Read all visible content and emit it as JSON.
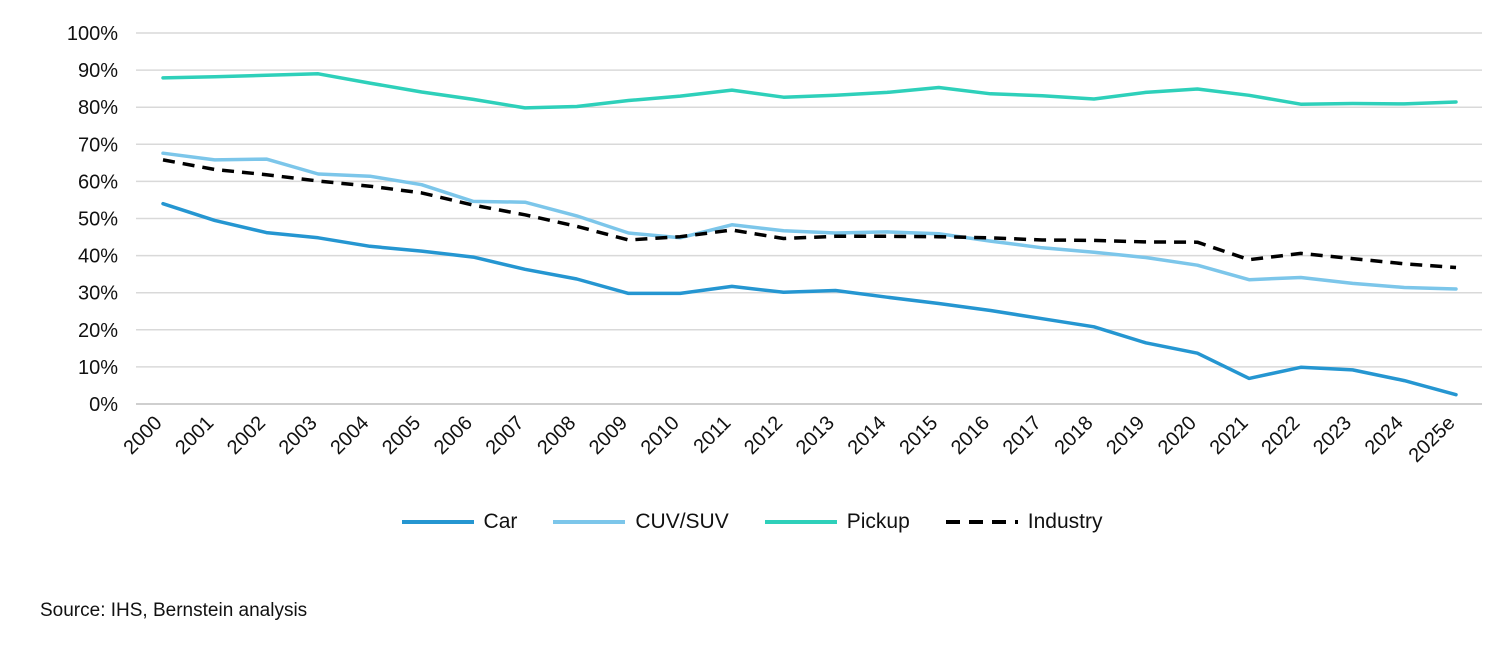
{
  "chart_data": {
    "type": "line",
    "title": "",
    "xlabel": "",
    "ylabel": "",
    "categories": [
      "2000",
      "2001",
      "2002",
      "2003",
      "2004",
      "2005",
      "2006",
      "2007",
      "2008",
      "2009",
      "2010",
      "2011",
      "2012",
      "2013",
      "2014",
      "2015",
      "2016",
      "2017",
      "2018",
      "2019",
      "2020",
      "2021",
      "2022",
      "2023",
      "2024",
      "2025e"
    ],
    "ylim": [
      0,
      100
    ],
    "yticks": [
      "0%",
      "10%",
      "20%",
      "30%",
      "40%",
      "50%",
      "60%",
      "70%",
      "80%",
      "90%",
      "100%"
    ],
    "grid": true,
    "legend_position": "bottom",
    "series": [
      {
        "name": "Car",
        "color": "#2596d1",
        "dash": "solid",
        "values": [
          54,
          49.5,
          46.2,
          44.8,
          42.5,
          41.2,
          39.6,
          36.3,
          33.7,
          29.8,
          29.8,
          31.7,
          30.1,
          30.6,
          28.8,
          27.1,
          25.2,
          23,
          20.8,
          16.5,
          13.7,
          6.9,
          9.9,
          9.2,
          6.3,
          2.5
        ]
      },
      {
        "name": "CUV/SUV",
        "color": "#7cc6ea",
        "dash": "solid",
        "values": [
          67.6,
          65.8,
          66,
          62,
          61.4,
          59.1,
          54.6,
          54.4,
          50.7,
          46.1,
          44.8,
          48.3,
          46.7,
          46.1,
          46.4,
          45.9,
          43.9,
          42.1,
          40.9,
          39.5,
          37.4,
          33.5,
          34.1,
          32.5,
          31.4,
          31
        ]
      },
      {
        "name": "Pickup",
        "color": "#2ed0ba",
        "dash": "solid",
        "values": [
          87.9,
          88.2,
          88.6,
          89,
          86.5,
          84.1,
          82.1,
          79.8,
          80.2,
          81.8,
          83,
          84.6,
          82.7,
          83.2,
          84,
          85.3,
          83.6,
          83.1,
          82.2,
          84,
          84.9,
          83.2,
          80.8,
          81,
          80.9,
          81.4
        ]
      },
      {
        "name": "Industry",
        "color": "#000000",
        "dash": "dashed",
        "values": [
          65.8,
          63.2,
          61.8,
          60.1,
          58.7,
          56.9,
          53.6,
          51,
          47.9,
          44.2,
          45.1,
          46.9,
          44.6,
          45.2,
          45.2,
          45.1,
          44.8,
          44.2,
          44.1,
          43.7,
          43.6,
          38.9,
          40.6,
          39.2,
          37.8,
          36.8
        ]
      }
    ]
  },
  "legend": [
    "Car",
    "CUV/SUV",
    "Pickup",
    "Industry"
  ],
  "source_text": "Source: IHS, Bernstein analysis"
}
